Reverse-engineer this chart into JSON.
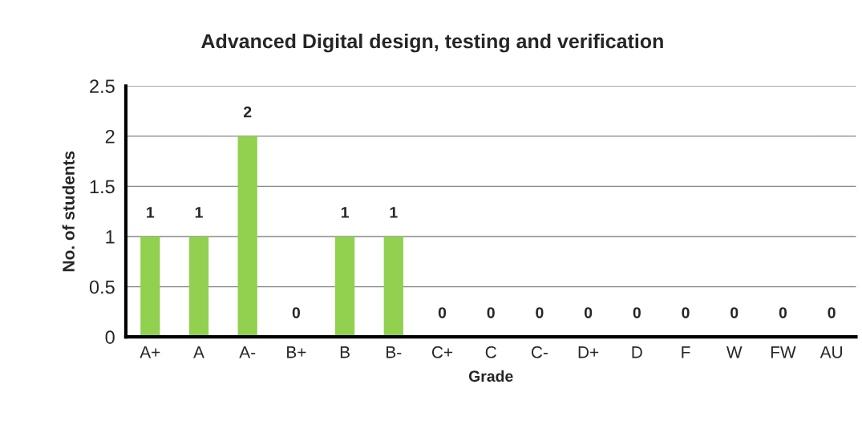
{
  "chart_data": {
    "type": "bar",
    "title": "Advanced Digital design, testing and verification",
    "xlabel": "Grade",
    "ylabel": "No. of students",
    "categories": [
      "A+",
      "A",
      "A-",
      "B+",
      "B",
      "B-",
      "C+",
      "C",
      "C-",
      "D+",
      "D",
      "F",
      "W",
      "FW",
      "AU"
    ],
    "values": [
      1,
      1,
      2,
      0,
      1,
      1,
      0,
      0,
      0,
      0,
      0,
      0,
      0,
      0,
      0
    ],
    "color": "#92d050",
    "ylim": [
      0,
      2.5
    ],
    "yticks": [
      0,
      0.5,
      1,
      1.5,
      2,
      2.5
    ],
    "grid": "y",
    "data_labels": true
  }
}
